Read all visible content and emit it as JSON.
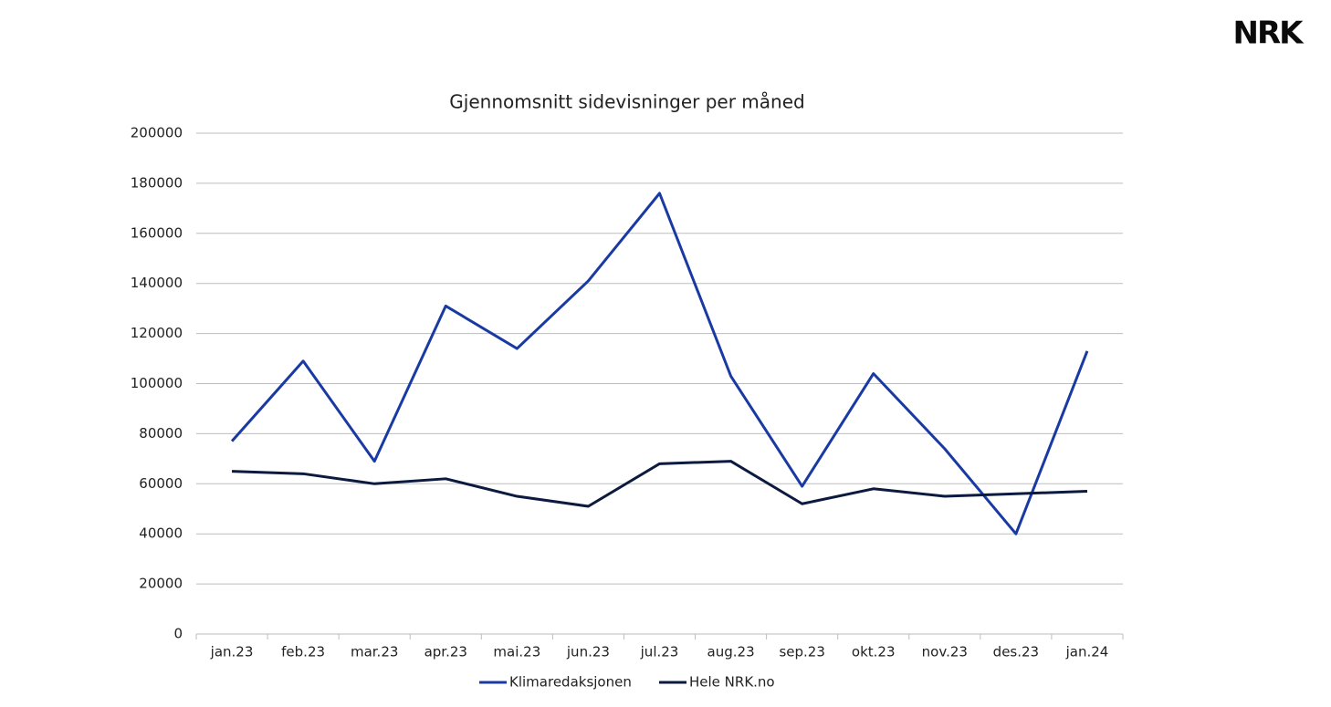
{
  "logo": "NRK",
  "chart_data": {
    "type": "line",
    "title": "Gjennomsnitt sidevisninger per måned",
    "categories": [
      "jan.23",
      "feb.23",
      "mar.23",
      "apr.23",
      "mai.23",
      "jun.23",
      "jul.23",
      "aug.23",
      "sep.23",
      "okt.23",
      "nov.23",
      "des.23",
      "jan.24"
    ],
    "series": [
      {
        "name": "Klimaredaksjonen",
        "color": "#1a3aa3",
        "values": [
          77000,
          109000,
          69000,
          131000,
          114000,
          141000,
          176000,
          103000,
          59000,
          104000,
          74000,
          40000,
          113000
        ]
      },
      {
        "name": "Hele NRK.no",
        "color": "#0b1a3e",
        "values": [
          65000,
          64000,
          60000,
          62000,
          55000,
          51000,
          68000,
          69000,
          52000,
          58000,
          55000,
          56000,
          57000
        ]
      }
    ],
    "ylim": [
      0,
      200000
    ],
    "yticks": [
      0,
      20000,
      40000,
      60000,
      80000,
      100000,
      120000,
      140000,
      160000,
      180000,
      200000
    ],
    "grid": true,
    "legend": "bottom"
  }
}
